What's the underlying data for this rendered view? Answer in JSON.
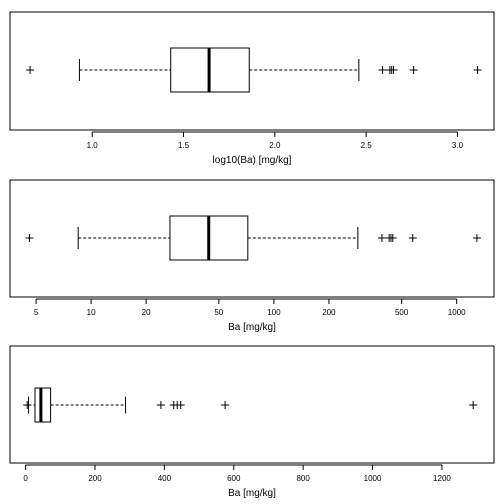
{
  "chart_data": [
    {
      "type": "boxplot",
      "orientation": "horizontal",
      "scale": "linear",
      "xlabel": "log10(Ba) [mg/kg]",
      "xlim": [
        0.55,
        3.2
      ],
      "ticks": [
        1.0,
        1.5,
        2.0,
        2.5,
        3.0
      ],
      "tick_labels": [
        "1.0",
        "1.5",
        "2.0",
        "2.5",
        "3.0"
      ],
      "stats": {
        "whisker_low": 0.93,
        "q1": 1.43,
        "median": 1.64,
        "q3": 1.86,
        "whisker_high": 2.46
      },
      "outliers": [
        0.66,
        2.59,
        2.63,
        2.64,
        2.65,
        2.76,
        3.11
      ]
    },
    {
      "type": "boxplot",
      "orientation": "horizontal",
      "scale": "log",
      "xlabel": "Ba [mg/kg]",
      "xlim": [
        3.6,
        1600
      ],
      "ticks": [
        5,
        10,
        20,
        50,
        100,
        200,
        500,
        1000
      ],
      "tick_labels": [
        "5",
        "10",
        "20",
        "50",
        "100",
        "200",
        "500",
        "1000"
      ],
      "stats": {
        "whisker_low": 8.5,
        "q1": 27,
        "median": 44,
        "q3": 72,
        "whisker_high": 288
      },
      "outliers": [
        4.6,
        390,
        427,
        437,
        447,
        575,
        1290
      ]
    },
    {
      "type": "boxplot",
      "orientation": "horizontal",
      "scale": "linear",
      "xlabel": "Ba [mg/kg]",
      "xlim": [
        -45,
        1350
      ],
      "ticks": [
        0,
        200,
        400,
        600,
        800,
        1000,
        1200
      ],
      "tick_labels": [
        "0",
        "200",
        "400",
        "600",
        "800",
        "1000",
        "1200"
      ],
      "stats": {
        "whisker_low": 8.5,
        "q1": 27,
        "median": 44,
        "q3": 72,
        "whisker_high": 288
      },
      "outliers": [
        4.6,
        390,
        427,
        437,
        447,
        575,
        1290
      ]
    }
  ]
}
